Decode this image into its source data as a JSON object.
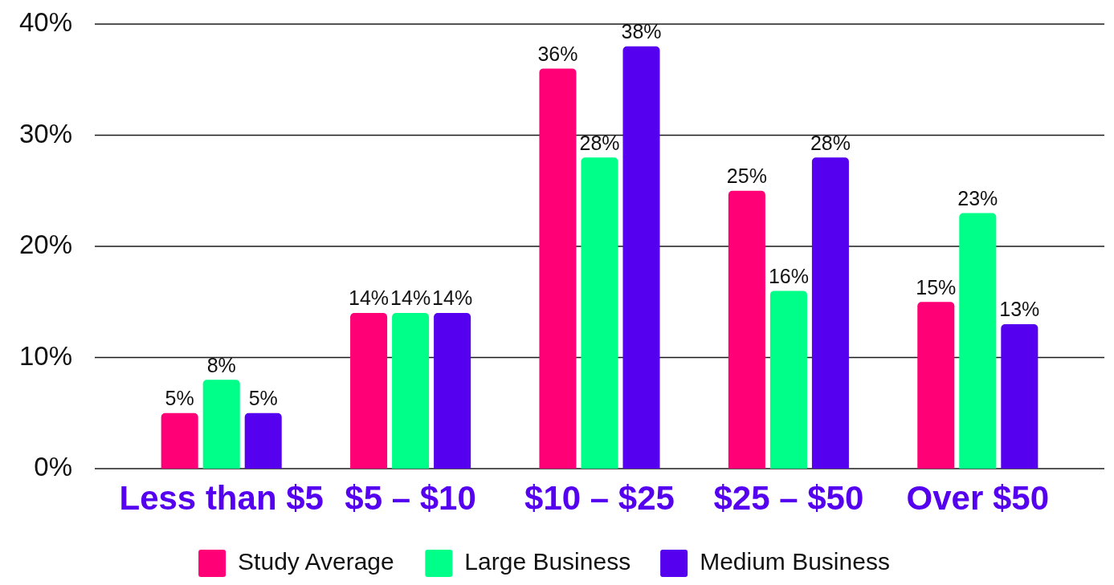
{
  "chart_data": {
    "type": "bar",
    "categories": [
      "Less than $5",
      "$5 – $10",
      "$10 – $25",
      "$25 – $50",
      "Over $50"
    ],
    "series": [
      {
        "name": "Study Average",
        "color": "#ff0077",
        "values": [
          5,
          14,
          36,
          25,
          15
        ],
        "value_labels": [
          "5%",
          "14%",
          "36%",
          "25%",
          "15%"
        ]
      },
      {
        "name": "Large Business",
        "color": "#00ff88",
        "values": [
          8,
          14,
          28,
          16,
          23
        ],
        "value_labels": [
          "8%",
          "14%",
          "28%",
          "16%",
          "23%"
        ]
      },
      {
        "name": "Medium Business",
        "color": "#5500ee",
        "values": [
          5,
          14,
          38,
          28,
          13
        ],
        "value_labels": [
          "5%",
          "14%",
          "38%",
          "28%",
          "13%"
        ]
      }
    ],
    "ylim": [
      0,
      40
    ],
    "yticks": [
      {
        "value": 0,
        "label": "0%"
      },
      {
        "value": 10,
        "label": "10%"
      },
      {
        "value": 20,
        "label": "20%"
      },
      {
        "value": 30,
        "label": "30%"
      },
      {
        "value": 40,
        "label": "40%"
      }
    ],
    "grid": "y",
    "legend": "bottom"
  }
}
